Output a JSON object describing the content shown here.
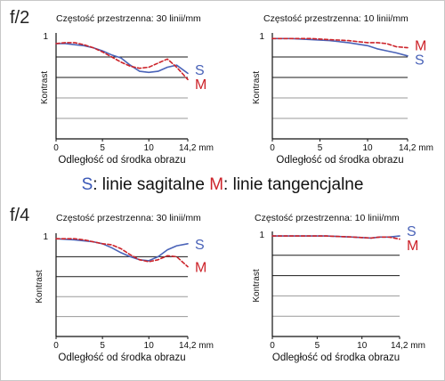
{
  "legend": {
    "s_key": "S",
    "s_text": ": linie sagitalne ",
    "m_key": "M",
    "m_text": ": linie tangencjalne"
  },
  "rows": [
    {
      "aperture": "f/2"
    },
    {
      "aperture": "f/4"
    }
  ],
  "colors": {
    "sagittal": "#4a63b8",
    "tangential": "#cc2229",
    "grid_dark": "#1a1a1a",
    "grid_light": "#9a9a9a"
  },
  "chart_data": [
    {
      "type": "line",
      "aperture": "f/2",
      "title": "Częstość przestrzenna: 30 linii/mm",
      "xlabel": "Odległość od środka obrazu",
      "ylabel": "Kontrast",
      "xlim": [
        0,
        14.2
      ],
      "ylim": [
        0,
        1
      ],
      "x_ticks": [
        "0",
        "5",
        "10",
        "14,2 mm"
      ],
      "y_ticks": [
        "1"
      ],
      "grid": "horizontal",
      "series": [
        {
          "name": "S",
          "style": "solid",
          "x": [
            0,
            1,
            2,
            3,
            4,
            5,
            6,
            7,
            8,
            9,
            10,
            11,
            12,
            13,
            14.2
          ],
          "y": [
            0.93,
            0.93,
            0.92,
            0.91,
            0.89,
            0.86,
            0.82,
            0.79,
            0.72,
            0.66,
            0.65,
            0.66,
            0.7,
            0.72,
            0.64
          ]
        },
        {
          "name": "M",
          "style": "dashed",
          "x": [
            0,
            1,
            2,
            3,
            4,
            5,
            6,
            7,
            8,
            9,
            10,
            11,
            12,
            13,
            14.2
          ],
          "y": [
            0.93,
            0.94,
            0.94,
            0.92,
            0.89,
            0.85,
            0.8,
            0.75,
            0.71,
            0.69,
            0.7,
            0.74,
            0.78,
            0.7,
            0.58
          ]
        }
      ]
    },
    {
      "type": "line",
      "aperture": "f/2",
      "title": "Częstość przestrzenna: 10 linii/mm",
      "xlabel": "Odległość od środka obrazu",
      "ylabel": "Kontrast",
      "xlim": [
        0,
        14.2
      ],
      "ylim": [
        0,
        1
      ],
      "x_ticks": [
        "0",
        "5",
        "10",
        "14,2 mm"
      ],
      "y_ticks": [
        "1"
      ],
      "grid": "horizontal",
      "series": [
        {
          "name": "S",
          "style": "solid",
          "x": [
            0,
            2,
            4,
            6,
            8,
            10,
            11,
            12,
            13,
            14.2
          ],
          "y": [
            0.98,
            0.98,
            0.97,
            0.96,
            0.94,
            0.91,
            0.88,
            0.86,
            0.84,
            0.81
          ]
        },
        {
          "name": "M",
          "style": "dashed",
          "x": [
            0,
            2,
            4,
            6,
            8,
            9,
            10,
            11,
            12,
            13,
            14.2
          ],
          "y": [
            0.98,
            0.98,
            0.98,
            0.97,
            0.96,
            0.95,
            0.94,
            0.94,
            0.93,
            0.9,
            0.89
          ]
        }
      ]
    },
    {
      "type": "line",
      "aperture": "f/4",
      "title": "Częstość przestrzenna: 30 linii/mm",
      "xlabel": "Odległość od środka obrazu",
      "ylabel": "Kontrast",
      "xlim": [
        0,
        14.2
      ],
      "ylim": [
        0,
        1
      ],
      "x_ticks": [
        "0",
        "5",
        "10",
        "14,2 mm"
      ],
      "y_ticks": [
        "1"
      ],
      "grid": "horizontal",
      "series": [
        {
          "name": "S",
          "style": "solid",
          "x": [
            0,
            2,
            4,
            5,
            6,
            7,
            8,
            9,
            10,
            11,
            12,
            13,
            14.2
          ],
          "y": [
            0.98,
            0.97,
            0.95,
            0.93,
            0.89,
            0.84,
            0.8,
            0.77,
            0.76,
            0.8,
            0.87,
            0.91,
            0.93
          ]
        },
        {
          "name": "M",
          "style": "dashed",
          "x": [
            0,
            2,
            3,
            4,
            5,
            6,
            7,
            8,
            9,
            10,
            11,
            12,
            13,
            14.2
          ],
          "y": [
            0.98,
            0.98,
            0.97,
            0.95,
            0.93,
            0.92,
            0.88,
            0.82,
            0.77,
            0.75,
            0.77,
            0.81,
            0.8,
            0.7
          ]
        }
      ]
    },
    {
      "type": "line",
      "aperture": "f/4",
      "title": "Częstość przestrzenna: 10 linii/mm",
      "xlabel": "Odległość od środka obrazu",
      "ylabel": "Kontrast",
      "xlim": [
        0,
        14.2
      ],
      "ylim": [
        0,
        1
      ],
      "x_ticks": [
        "0",
        "5",
        "10",
        "14,2 mm"
      ],
      "y_ticks": [
        "1"
      ],
      "grid": "horizontal",
      "series": [
        {
          "name": "S",
          "style": "solid",
          "x": [
            0,
            3,
            6,
            9,
            11,
            12,
            13,
            14.2
          ],
          "y": [
            0.99,
            0.99,
            0.99,
            0.98,
            0.97,
            0.98,
            0.98,
            0.99
          ]
        },
        {
          "name": "M",
          "style": "dashed",
          "x": [
            0,
            3,
            6,
            9,
            11,
            12,
            13,
            14.2
          ],
          "y": [
            0.99,
            0.99,
            0.99,
            0.98,
            0.97,
            0.98,
            0.98,
            0.96
          ]
        }
      ]
    }
  ]
}
